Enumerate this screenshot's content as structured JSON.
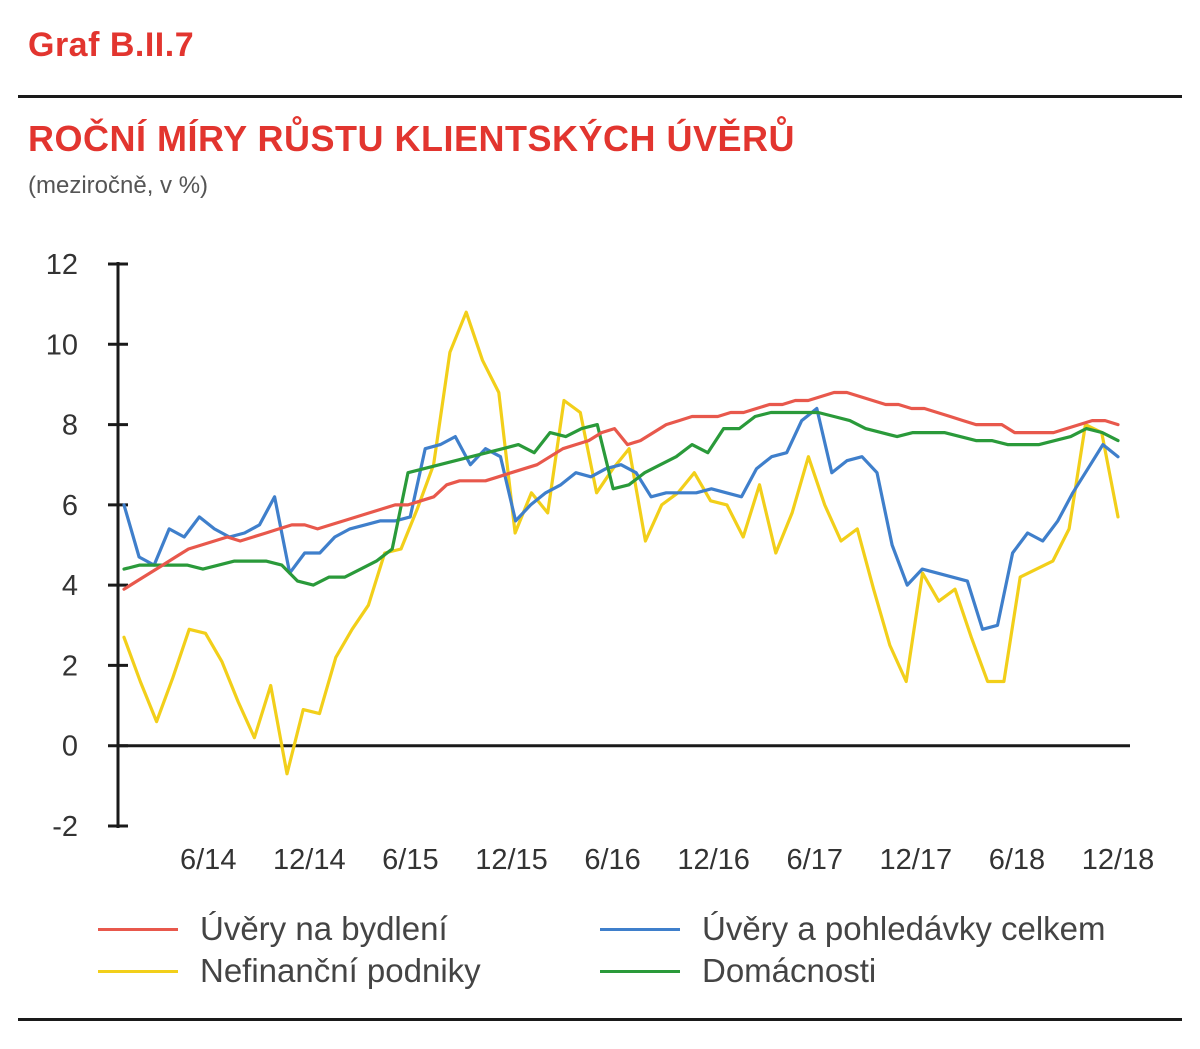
{
  "header": {
    "graf_label": "Graf B.II.7",
    "title": "ROČNÍ MÍRY RŮSTU KLIENTSKÝCH ÚVĚRŮ",
    "subtitle": "(meziročně, v %)"
  },
  "chart_data": {
    "type": "line",
    "ylim": [
      -2,
      12
    ],
    "yticks": [
      "12",
      "10",
      "8",
      "6",
      "4",
      "2",
      "0",
      "-2"
    ],
    "xticks": [
      "6/14",
      "12/14",
      "6/15",
      "12/15",
      "6/16",
      "12/16",
      "6/17",
      "12/17",
      "6/18",
      "12/18"
    ],
    "x_range": [
      "1/14",
      "12/18"
    ],
    "grid": false,
    "legend_position": "bottom",
    "series": [
      {
        "name": "Úvěry na bydlení",
        "color": "#e8584c",
        "values": [
          3.9,
          4.1,
          4.3,
          4.5,
          4.7,
          4.9,
          5.0,
          5.1,
          5.2,
          5.1,
          5.2,
          5.3,
          5.4,
          5.5,
          5.5,
          5.4,
          5.5,
          5.6,
          5.7,
          5.8,
          5.9,
          6.0,
          6.0,
          6.1,
          6.2,
          6.5,
          6.6,
          6.6,
          6.6,
          6.7,
          6.8,
          6.9,
          7.0,
          7.2,
          7.4,
          7.5,
          7.6,
          7.8,
          7.9,
          7.5,
          7.6,
          7.8,
          8.0,
          8.1,
          8.2,
          8.2,
          8.2,
          8.3,
          8.3,
          8.4,
          8.5,
          8.5,
          8.6,
          8.6,
          8.7,
          8.8,
          8.8,
          8.7,
          8.6,
          8.5,
          8.5,
          8.4,
          8.4,
          8.3,
          8.2,
          8.1,
          8.0,
          8.0,
          8.0,
          7.8,
          7.8,
          7.8,
          7.8,
          7.9,
          8.0,
          8.1,
          8.1,
          8.0
        ]
      },
      {
        "name": "Úvěry a pohledávky celkem",
        "color": "#3f7fcb",
        "values": [
          6.0,
          4.7,
          4.5,
          5.4,
          5.2,
          5.7,
          5.4,
          5.2,
          5.3,
          5.5,
          6.2,
          4.3,
          4.8,
          4.8,
          5.2,
          5.4,
          5.5,
          5.6,
          5.6,
          5.7,
          7.4,
          7.5,
          7.7,
          7.0,
          7.4,
          7.2,
          5.6,
          6.0,
          6.3,
          6.5,
          6.8,
          6.7,
          6.9,
          7.0,
          6.8,
          6.2,
          6.3,
          6.3,
          6.3,
          6.4,
          6.3,
          6.2,
          6.9,
          7.2,
          7.3,
          8.1,
          8.4,
          6.8,
          7.1,
          7.2,
          6.8,
          5.0,
          4.0,
          4.4,
          4.3,
          4.2,
          4.1,
          2.9,
          3.0,
          4.8,
          5.3,
          5.1,
          5.6,
          6.3,
          6.9,
          7.5,
          7.2
        ]
      },
      {
        "name": "Nefinanční podniky",
        "color": "#f2cf1a",
        "values": [
          2.7,
          1.6,
          0.6,
          1.7,
          2.9,
          2.8,
          2.1,
          1.1,
          0.2,
          1.5,
          -0.7,
          0.9,
          0.8,
          2.2,
          2.9,
          3.5,
          4.8,
          4.9,
          5.9,
          7.0,
          9.8,
          10.8,
          9.6,
          8.8,
          5.3,
          6.3,
          5.8,
          8.6,
          8.3,
          6.3,
          6.9,
          7.4,
          5.1,
          6.0,
          6.3,
          6.8,
          6.1,
          6.0,
          5.2,
          6.5,
          4.8,
          5.8,
          7.2,
          6.0,
          5.1,
          5.4,
          3.9,
          2.5,
          1.6,
          4.3,
          3.6,
          3.9,
          2.7,
          1.6,
          1.6,
          4.2,
          4.4,
          4.6,
          5.4,
          8.0,
          7.8,
          5.7
        ]
      },
      {
        "name": "Domácnosti",
        "color": "#2a9a3a",
        "values": [
          4.4,
          4.5,
          4.5,
          4.5,
          4.5,
          4.4,
          4.5,
          4.6,
          4.6,
          4.6,
          4.5,
          4.1,
          4.0,
          4.2,
          4.2,
          4.4,
          4.6,
          4.9,
          6.8,
          6.9,
          7.0,
          7.1,
          7.2,
          7.3,
          7.4,
          7.5,
          7.3,
          7.8,
          7.7,
          7.9,
          8.0,
          6.4,
          6.5,
          6.8,
          7.0,
          7.2,
          7.5,
          7.3,
          7.9,
          7.9,
          8.2,
          8.3,
          8.3,
          8.3,
          8.3,
          8.2,
          8.1,
          7.9,
          7.8,
          7.7,
          7.8,
          7.8,
          7.8,
          7.7,
          7.6,
          7.6,
          7.5,
          7.5,
          7.5,
          7.6,
          7.7,
          7.9,
          7.8,
          7.6
        ]
      }
    ]
  }
}
